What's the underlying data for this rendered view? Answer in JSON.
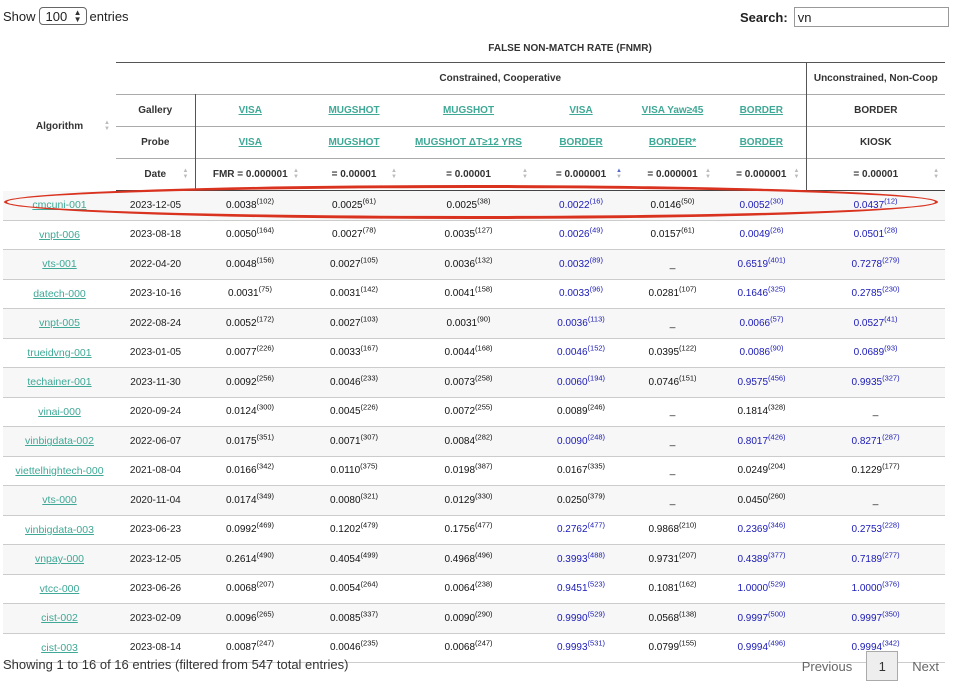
{
  "controls": {
    "show_label": "Show",
    "entries_value": "100",
    "entries_label": "entries",
    "search_label": "Search:",
    "search_value": "vn"
  },
  "header": {
    "fnmr_title": "FALSE NON-MATCH RATE (FNMR)",
    "algorithm": "Algorithm",
    "group_constrained": "Constrained, Cooperative",
    "group_unconstrained": "Unconstrained, Non-Coop",
    "gallery_label": "Gallery",
    "probe_label": "Probe",
    "date_label": "Date",
    "gallery": [
      "VISA",
      "MUGSHOT",
      "MUGSHOT",
      "VISA",
      "VISA Yaw≥45",
      "BORDER",
      "BORDER"
    ],
    "probe": [
      "VISA",
      "MUGSHOT",
      "MUGSHOT ΔT≥12 YRS",
      "BORDER",
      "BORDER*",
      "BORDER",
      "KIOSK"
    ],
    "fmr": [
      "FMR = 0.000001",
      "= 0.00001",
      "= 0.00001",
      "= 0.000001",
      "= 0.000001",
      "= 0.000001",
      "= 0.00001"
    ]
  },
  "rows": [
    {
      "alg": "cmcuni-001",
      "date": "2023-12-05",
      "c": [
        [
          "0.0038",
          "(102)"
        ],
        [
          "0.0025",
          "(61)"
        ],
        [
          "0.0025",
          "(38)"
        ],
        [
          "0.0022",
          "(16)"
        ],
        [
          "0.0146",
          "(50)"
        ],
        [
          "0.0052",
          "(30)"
        ],
        [
          "0.0437",
          "(12)"
        ]
      ]
    },
    {
      "alg": "vnpt-006",
      "date": "2023-08-18",
      "c": [
        [
          "0.0050",
          "(164)"
        ],
        [
          "0.0027",
          "(78)"
        ],
        [
          "0.0035",
          "(127)"
        ],
        [
          "0.0026",
          "(49)"
        ],
        [
          "0.0157",
          "(61)"
        ],
        [
          "0.0049",
          "(26)"
        ],
        [
          "0.0501",
          "(28)"
        ]
      ]
    },
    {
      "alg": "vts-001",
      "date": "2022-04-20",
      "c": [
        [
          "0.0048",
          "(156)"
        ],
        [
          "0.0027",
          "(105)"
        ],
        [
          "0.0036",
          "(132)"
        ],
        [
          "0.0032",
          "(89)"
        ],
        [
          "_",
          ""
        ],
        [
          "0.6519",
          "(401)"
        ],
        [
          "0.7278",
          "(279)"
        ]
      ]
    },
    {
      "alg": "datech-000",
      "date": "2023-10-16",
      "c": [
        [
          "0.0031",
          "(75)"
        ],
        [
          "0.0031",
          "(142)"
        ],
        [
          "0.0041",
          "(158)"
        ],
        [
          "0.0033",
          "(96)"
        ],
        [
          "0.0281",
          "(107)"
        ],
        [
          "0.1646",
          "(325)"
        ],
        [
          "0.2785",
          "(230)"
        ]
      ]
    },
    {
      "alg": "vnpt-005",
      "date": "2022-08-24",
      "c": [
        [
          "0.0052",
          "(172)"
        ],
        [
          "0.0027",
          "(103)"
        ],
        [
          "0.0031",
          "(90)"
        ],
        [
          "0.0036",
          "(113)"
        ],
        [
          "_",
          ""
        ],
        [
          "0.0066",
          "(57)"
        ],
        [
          "0.0527",
          "(41)"
        ]
      ]
    },
    {
      "alg": "trueidvng-001",
      "date": "2023-01-05",
      "c": [
        [
          "0.0077",
          "(226)"
        ],
        [
          "0.0033",
          "(167)"
        ],
        [
          "0.0044",
          "(168)"
        ],
        [
          "0.0046",
          "(152)"
        ],
        [
          "0.0395",
          "(122)"
        ],
        [
          "0.0086",
          "(90)"
        ],
        [
          "0.0689",
          "(93)"
        ]
      ]
    },
    {
      "alg": "techainer-001",
      "date": "2023-11-30",
      "c": [
        [
          "0.0092",
          "(256)"
        ],
        [
          "0.0046",
          "(233)"
        ],
        [
          "0.0073",
          "(258)"
        ],
        [
          "0.0060",
          "(194)"
        ],
        [
          "0.0746",
          "(151)"
        ],
        [
          "0.9575",
          "(456)"
        ],
        [
          "0.9935",
          "(327)"
        ]
      ]
    },
    {
      "alg": "vinai-000",
      "date": "2020-09-24",
      "c": [
        [
          "0.0124",
          "(300)"
        ],
        [
          "0.0045",
          "(226)"
        ],
        [
          "0.0072",
          "(255)"
        ],
        [
          "0.0089",
          "(246)"
        ],
        [
          "_",
          ""
        ],
        [
          "0.1814",
          "(328)"
        ],
        [
          "_",
          ""
        ]
      ]
    },
    {
      "alg": "vinbigdata-002",
      "date": "2022-06-07",
      "c": [
        [
          "0.0175",
          "(351)"
        ],
        [
          "0.0071",
          "(307)"
        ],
        [
          "0.0084",
          "(282)"
        ],
        [
          "0.0090",
          "(248)"
        ],
        [
          "_",
          ""
        ],
        [
          "0.8017",
          "(426)"
        ],
        [
          "0.8271",
          "(287)"
        ]
      ]
    },
    {
      "alg": "viettelhightech-000",
      "date": "2021-08-04",
      "c": [
        [
          "0.0166",
          "(342)"
        ],
        [
          "0.0110",
          "(375)"
        ],
        [
          "0.0198",
          "(387)"
        ],
        [
          "0.0167",
          "(335)"
        ],
        [
          "_",
          ""
        ],
        [
          "0.0249",
          "(204)"
        ],
        [
          "0.1229",
          "(177)"
        ]
      ]
    },
    {
      "alg": "vts-000",
      "date": "2020-11-04",
      "c": [
        [
          "0.0174",
          "(349)"
        ],
        [
          "0.0080",
          "(321)"
        ],
        [
          "0.0129",
          "(330)"
        ],
        [
          "0.0250",
          "(379)"
        ],
        [
          "_",
          ""
        ],
        [
          "0.0450",
          "(260)"
        ],
        [
          "_",
          ""
        ]
      ]
    },
    {
      "alg": "vinbigdata-003",
      "date": "2023-06-23",
      "c": [
        [
          "0.0992",
          "(469)"
        ],
        [
          "0.1202",
          "(479)"
        ],
        [
          "0.1756",
          "(477)"
        ],
        [
          "0.2762",
          "(477)"
        ],
        [
          "0.9868",
          "(210)"
        ],
        [
          "0.2369",
          "(346)"
        ],
        [
          "0.2753",
          "(228)"
        ]
      ]
    },
    {
      "alg": "vnpay-000",
      "date": "2023-12-05",
      "c": [
        [
          "0.2614",
          "(490)"
        ],
        [
          "0.4054",
          "(499)"
        ],
        [
          "0.4968",
          "(496)"
        ],
        [
          "0.3993",
          "(488)"
        ],
        [
          "0.9731",
          "(207)"
        ],
        [
          "0.4389",
          "(377)"
        ],
        [
          "0.7189",
          "(277)"
        ]
      ]
    },
    {
      "alg": "vtcc-000",
      "date": "2023-06-26",
      "c": [
        [
          "0.0068",
          "(207)"
        ],
        [
          "0.0054",
          "(264)"
        ],
        [
          "0.0064",
          "(238)"
        ],
        [
          "0.9451",
          "(523)"
        ],
        [
          "0.1081",
          "(162)"
        ],
        [
          "1.0000",
          "(529)"
        ],
        [
          "1.0000",
          "(376)"
        ]
      ]
    },
    {
      "alg": "cist-002",
      "date": "2023-02-09",
      "c": [
        [
          "0.0096",
          "(265)"
        ],
        [
          "0.0085",
          "(337)"
        ],
        [
          "0.0090",
          "(290)"
        ],
        [
          "0.9990",
          "(529)"
        ],
        [
          "0.0568",
          "(138)"
        ],
        [
          "0.9997",
          "(500)"
        ],
        [
          "0.9997",
          "(350)"
        ]
      ]
    },
    {
      "alg": "cist-003",
      "date": "2023-08-14",
      "c": [
        [
          "0.0087",
          "(247)"
        ],
        [
          "0.0046",
          "(235)"
        ],
        [
          "0.0068",
          "(247)"
        ],
        [
          "0.9993",
          "(531)"
        ],
        [
          "0.0799",
          "(155)"
        ],
        [
          "0.9994",
          "(496)"
        ],
        [
          "0.9994",
          "(342)"
        ]
      ]
    }
  ],
  "colors": {
    "blue_cols": [
      "rows 0-6, 8, 11-15 in col 4 and cols 6-7",
      "#1a1ab8"
    ],
    "link": "#3fa896",
    "highlight_oval": "#d9321f"
  },
  "blue_flags": [
    [
      0,
      0,
      0,
      1,
      0,
      1,
      1
    ],
    [
      0,
      0,
      0,
      1,
      0,
      1,
      1
    ],
    [
      0,
      0,
      0,
      1,
      0,
      1,
      1
    ],
    [
      0,
      0,
      0,
      1,
      0,
      1,
      1
    ],
    [
      0,
      0,
      0,
      1,
      0,
      1,
      1
    ],
    [
      0,
      0,
      0,
      1,
      0,
      1,
      1
    ],
    [
      0,
      0,
      0,
      1,
      0,
      1,
      1
    ],
    [
      0,
      0,
      0,
      0,
      0,
      0,
      0
    ],
    [
      0,
      0,
      0,
      1,
      0,
      1,
      1
    ],
    [
      0,
      0,
      0,
      0,
      0,
      0,
      0
    ],
    [
      0,
      0,
      0,
      0,
      0,
      0,
      0
    ],
    [
      0,
      0,
      0,
      1,
      0,
      1,
      1
    ],
    [
      0,
      0,
      0,
      1,
      0,
      1,
      1
    ],
    [
      0,
      0,
      0,
      1,
      0,
      1,
      1
    ],
    [
      0,
      0,
      0,
      1,
      0,
      1,
      1
    ],
    [
      0,
      0,
      0,
      1,
      0,
      1,
      1
    ]
  ],
  "footer": {
    "info": "Showing 1 to 16 of 16 entries (filtered from 547 total entries)",
    "previous": "Previous",
    "page": "1",
    "next": "Next"
  }
}
